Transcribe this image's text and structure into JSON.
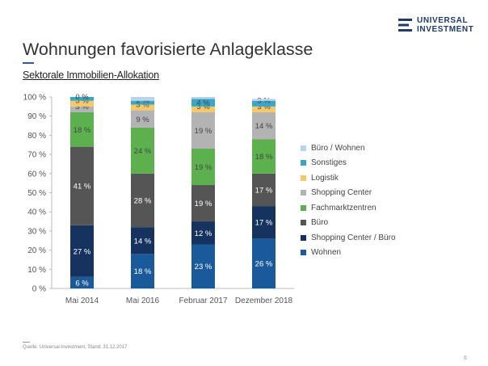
{
  "logo": {
    "line1": "UNIVERSAL",
    "line2": "INVESTMENT",
    "color": "#1f3a6e"
  },
  "title": "Wohnungen favorisierte Anlageklasse",
  "subtitle": "Sektorale Immobilien-Allokation",
  "source": "Quelle: Universal-Investment, Stand: 31.12.2017",
  "page_number": "6",
  "chart_data": {
    "type": "bar",
    "stacked": true,
    "categories": [
      "Mai 2014",
      "Mai 2016",
      "Februar 2017",
      "Dezember 2018"
    ],
    "ylim": [
      0,
      100
    ],
    "yticks": [
      0,
      10,
      20,
      30,
      40,
      50,
      60,
      70,
      80,
      90,
      100
    ],
    "ytick_labels": [
      "0 %",
      "10 %",
      "20 %",
      "30 %",
      "40 %",
      "50 %",
      "60 %",
      "70 %",
      "80 %",
      "90 %",
      "100 %"
    ],
    "legend_position": "right",
    "series": [
      {
        "name": "Wohnen",
        "color": "#1a5a9a",
        "values": [
          6,
          18,
          23,
          26
        ],
        "labels": [
          "6 %",
          "18 %",
          "23 %",
          "26 %"
        ]
      },
      {
        "name": "Shopping Center / Büro",
        "color": "#15335e",
        "values": [
          27,
          14,
          12,
          17
        ],
        "labels": [
          "27 %",
          "14 %",
          "12 %",
          "17 %"
        ]
      },
      {
        "name": "Büro",
        "color": "#555555",
        "values": [
          41,
          28,
          19,
          17
        ],
        "labels": [
          "41 %",
          "28 %",
          "19 %",
          "17 %"
        ]
      },
      {
        "name": "Fachmarktzentren",
        "color": "#5cb14e",
        "values": [
          18,
          24,
          19,
          18
        ],
        "labels": [
          "18 %",
          "24 %",
          "19 %",
          "18 %"
        ]
      },
      {
        "name": "Shopping Center",
        "color": "#b3b3b3",
        "values": [
          3,
          9,
          19,
          14
        ],
        "labels": [
          "3 %",
          "9 %",
          "19 %",
          "14 %"
        ]
      },
      {
        "name": "Logistik",
        "color": "#f5c96a",
        "values": [
          3,
          3,
          3,
          3
        ],
        "labels": [
          "3 %",
          "3 %",
          "3 %",
          "3 %"
        ]
      },
      {
        "name": "Sonstiges",
        "color": "#3aa6c4",
        "values": [
          2,
          2,
          4,
          3
        ],
        "labels": [
          "",
          "2 %",
          "4 %",
          "3 %"
        ]
      },
      {
        "name": "Büro / Wohnen",
        "color": "#b7d4ee",
        "values": [
          0,
          2,
          1,
          1
        ],
        "labels": [
          "0 %",
          "",
          "",
          ""
        ]
      }
    ]
  }
}
